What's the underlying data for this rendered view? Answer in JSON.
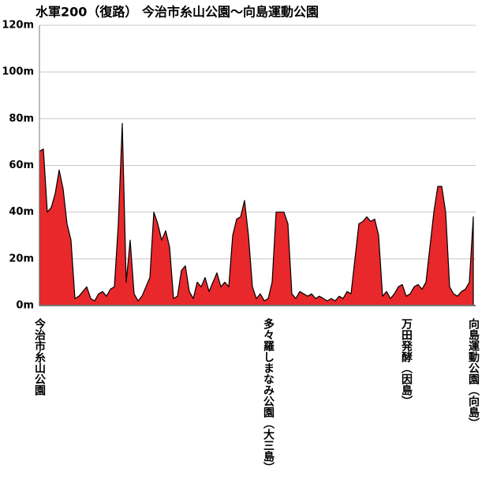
{
  "chart_data": {
    "type": "area",
    "title": "水軍200（復路） 今治市糸山公園～向島運動公園",
    "categories": [
      "今治市糸山公園",
      null,
      null,
      null,
      null,
      null,
      null,
      null,
      null,
      null,
      null,
      null,
      null,
      null,
      null,
      null,
      null,
      null,
      null,
      null,
      null,
      null,
      null,
      null,
      null,
      null,
      null,
      null,
      null,
      null,
      null,
      null,
      null,
      null,
      null,
      null,
      null,
      null,
      null,
      null,
      null,
      null,
      null,
      null,
      null,
      null,
      null,
      null,
      null,
      null,
      null,
      null,
      null,
      null,
      null,
      null,
      null,
      null,
      "多々羅しまなみ公園（大三島）",
      null,
      null,
      null,
      null,
      null,
      null,
      null,
      null,
      null,
      null,
      null,
      null,
      null,
      null,
      null,
      null,
      null,
      null,
      null,
      null,
      null,
      null,
      null,
      null,
      null,
      null,
      null,
      null,
      null,
      null,
      null,
      null,
      null,
      null,
      "万田発酵（因島）",
      null,
      null,
      null,
      null,
      null,
      null,
      null,
      null,
      null,
      null,
      null,
      null,
      null,
      null,
      null,
      null,
      "向島運動公園（向島）"
    ],
    "values": [
      66,
      67,
      40,
      42,
      48,
      58,
      50,
      35,
      28,
      3,
      4,
      6,
      8,
      3,
      2,
      5,
      6,
      4,
      7,
      8,
      35,
      78,
      10,
      28,
      5,
      2,
      4,
      8,
      12,
      40,
      35,
      28,
      32,
      25,
      3,
      4,
      15,
      17,
      6,
      3,
      10,
      8,
      12,
      6,
      10,
      14,
      8,
      10,
      8,
      30,
      37,
      38,
      45,
      30,
      8,
      3,
      5,
      2,
      3,
      10,
      40,
      40,
      40,
      35,
      5,
      3,
      6,
      5,
      4,
      5,
      3,
      4,
      3,
      2,
      3,
      2,
      4,
      3,
      6,
      5,
      20,
      35,
      36,
      38,
      36,
      37,
      30,
      4,
      6,
      3,
      5,
      8,
      9,
      4,
      5,
      8,
      9,
      7,
      10,
      25,
      40,
      51,
      51,
      40,
      8,
      5,
      4,
      6,
      7,
      10,
      38
    ],
    "color": "#e8282b",
    "ylim": [
      0,
      120
    ],
    "yticks": [
      {
        "value": 0,
        "label": "0m"
      },
      {
        "value": 20,
        "label": "20m"
      },
      {
        "value": 40,
        "label": "40m"
      },
      {
        "value": 60,
        "label": "60m"
      },
      {
        "value": 80,
        "label": "80m"
      },
      {
        "value": 100,
        "label": "100m"
      },
      {
        "value": 120,
        "label": "120m"
      }
    ],
    "grid": true
  }
}
